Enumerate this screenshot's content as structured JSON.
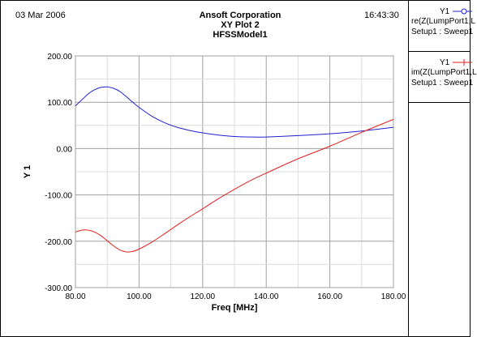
{
  "header": {
    "date": "03 Mar 2006",
    "company": "Ansoft Corporation",
    "plot_title": "XY Plot 2",
    "model": "HFSSModel1",
    "time": "16:43:30"
  },
  "legend": [
    {
      "name": "Y1",
      "expression": "re(Z(LumpPort1,L",
      "setup": "Setup1 : Sweep1",
      "color": "#2020d0",
      "marker": "circle"
    },
    {
      "name": "Y1",
      "expression": "im(Z(LumpPort1,L",
      "setup": "Setup1 : Sweep1",
      "color": "#e02020",
      "marker": "plus"
    }
  ],
  "chart_data": {
    "type": "line",
    "title": "XY Plot 2",
    "xlabel": "Freq [MHz]",
    "ylabel": "Y 1",
    "xlim": [
      80,
      180
    ],
    "ylim": [
      -300,
      200
    ],
    "xticks": [
      "80.00",
      "100.00",
      "120.00",
      "140.00",
      "160.00",
      "180.00"
    ],
    "yticks": [
      "200.00",
      "100.00",
      "0.00",
      "-100.00",
      "-200.00",
      "-300.00"
    ],
    "grid": true,
    "legend_position": "right",
    "series": [
      {
        "name": "re(Z(LumpPort1,L",
        "color": "#2020d0",
        "x": [
          80,
          82,
          84,
          86,
          88,
          90,
          92,
          94,
          96,
          98,
          100,
          104,
          108,
          112,
          116,
          120,
          125,
          130,
          135,
          140,
          150,
          160,
          170,
          180
        ],
        "y": [
          92,
          105,
          118,
          127,
          132,
          133,
          130,
          123,
          112,
          100,
          89,
          70,
          56,
          46,
          39,
          34,
          29,
          26,
          25,
          25,
          28,
          32,
          38,
          46
        ]
      },
      {
        "name": "im(Z(LumpPort1,L",
        "color": "#e02020",
        "x": [
          80,
          82,
          84,
          86,
          88,
          90,
          92,
          94,
          96,
          98,
          100,
          104,
          108,
          112,
          116,
          120,
          125,
          130,
          135,
          140,
          150,
          160,
          170,
          180
        ],
        "y": [
          -180,
          -176,
          -176,
          -180,
          -188,
          -199,
          -210,
          -219,
          -223,
          -222,
          -217,
          -202,
          -184,
          -165,
          -147,
          -130,
          -108,
          -88,
          -69,
          -53,
          -22,
          5,
          35,
          63
        ]
      }
    ]
  }
}
